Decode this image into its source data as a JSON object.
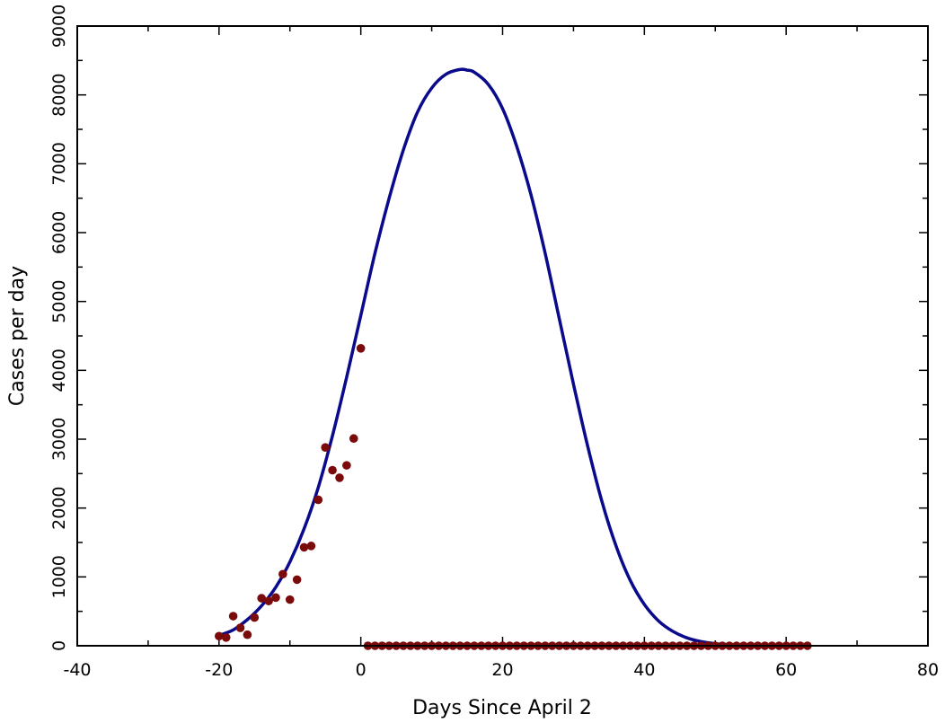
{
  "chart_data": {
    "type": "scatter",
    "title": "",
    "xlabel": "Days Since April 2",
    "ylabel": "Cases per day",
    "xlim": [
      -40,
      80
    ],
    "ylim": [
      0,
      9000
    ],
    "x_ticks": [
      -40,
      -20,
      0,
      20,
      40,
      60,
      80
    ],
    "y_ticks": [
      0,
      1000,
      2000,
      3000,
      4000,
      5000,
      6000,
      7000,
      8000,
      9000
    ],
    "grid": false,
    "legend": "none",
    "colors": {
      "points": "#7b0a0a",
      "curve": "#0a0a8c",
      "frame": "#000000"
    },
    "series": [
      {
        "kind": "points",
        "points": [
          [
            -20,
            140
          ],
          [
            -19,
            120
          ],
          [
            -18,
            430
          ],
          [
            -17,
            260
          ],
          [
            -16,
            160
          ],
          [
            -15,
            410
          ],
          [
            -14,
            690
          ],
          [
            -13,
            650
          ],
          [
            -12,
            700
          ],
          [
            -11,
            1040
          ],
          [
            -10,
            670
          ],
          [
            -9,
            960
          ],
          [
            -8,
            1430
          ],
          [
            -7,
            1450
          ],
          [
            -6,
            2120
          ],
          [
            -5,
            2880
          ],
          [
            -4,
            2550
          ],
          [
            -3,
            2440
          ],
          [
            -2,
            2620
          ],
          [
            -1,
            3010
          ],
          [
            0,
            4320
          ],
          [
            1,
            0
          ],
          [
            2,
            0
          ],
          [
            3,
            0
          ],
          [
            4,
            0
          ],
          [
            5,
            0
          ],
          [
            6,
            0
          ],
          [
            7,
            0
          ],
          [
            8,
            0
          ],
          [
            9,
            0
          ],
          [
            10,
            0
          ],
          [
            11,
            0
          ],
          [
            12,
            0
          ],
          [
            13,
            0
          ],
          [
            14,
            0
          ],
          [
            15,
            0
          ],
          [
            16,
            0
          ],
          [
            17,
            0
          ],
          [
            18,
            0
          ],
          [
            19,
            0
          ],
          [
            20,
            0
          ],
          [
            21,
            0
          ],
          [
            22,
            0
          ],
          [
            23,
            0
          ],
          [
            24,
            0
          ],
          [
            25,
            0
          ],
          [
            26,
            0
          ],
          [
            27,
            0
          ],
          [
            28,
            0
          ],
          [
            29,
            0
          ],
          [
            30,
            0
          ],
          [
            31,
            0
          ],
          [
            32,
            0
          ],
          [
            33,
            0
          ],
          [
            34,
            0
          ],
          [
            35,
            0
          ],
          [
            36,
            0
          ],
          [
            37,
            0
          ],
          [
            38,
            0
          ],
          [
            39,
            0
          ],
          [
            40,
            0
          ],
          [
            41,
            0
          ],
          [
            42,
            0
          ],
          [
            43,
            0
          ],
          [
            44,
            0
          ],
          [
            45,
            0
          ],
          [
            46,
            0
          ],
          [
            47,
            0
          ],
          [
            48,
            0
          ],
          [
            49,
            0
          ],
          [
            50,
            0
          ],
          [
            51,
            0
          ],
          [
            52,
            0
          ],
          [
            53,
            0
          ],
          [
            54,
            0
          ],
          [
            55,
            0
          ],
          [
            56,
            0
          ],
          [
            57,
            0
          ],
          [
            58,
            0
          ],
          [
            59,
            0
          ],
          [
            60,
            0
          ],
          [
            61,
            0
          ],
          [
            62,
            0
          ],
          [
            63,
            0
          ]
        ]
      },
      {
        "kind": "curve",
        "points": [
          [
            -20,
            150
          ],
          [
            -18,
            230
          ],
          [
            -16,
            380
          ],
          [
            -14,
            580
          ],
          [
            -12,
            850
          ],
          [
            -10,
            1220
          ],
          [
            -8,
            1700
          ],
          [
            -6,
            2300
          ],
          [
            -4,
            3050
          ],
          [
            -2,
            3900
          ],
          [
            0,
            4800
          ],
          [
            2,
            5700
          ],
          [
            4,
            6500
          ],
          [
            6,
            7200
          ],
          [
            8,
            7750
          ],
          [
            10,
            8100
          ],
          [
            12,
            8300
          ],
          [
            14,
            8370
          ],
          [
            15,
            8360
          ],
          [
            16,
            8330
          ],
          [
            18,
            8150
          ],
          [
            20,
            7800
          ],
          [
            22,
            7250
          ],
          [
            24,
            6550
          ],
          [
            26,
            5700
          ],
          [
            28,
            4750
          ],
          [
            30,
            3800
          ],
          [
            32,
            2900
          ],
          [
            34,
            2100
          ],
          [
            36,
            1450
          ],
          [
            38,
            950
          ],
          [
            40,
            600
          ],
          [
            42,
            360
          ],
          [
            44,
            210
          ],
          [
            46,
            115
          ],
          [
            48,
            60
          ],
          [
            50,
            30
          ],
          [
            52,
            15
          ],
          [
            54,
            6
          ],
          [
            56,
            2
          ],
          [
            58,
            1
          ],
          [
            60,
            0
          ],
          [
            63,
            0
          ]
        ]
      }
    ]
  }
}
